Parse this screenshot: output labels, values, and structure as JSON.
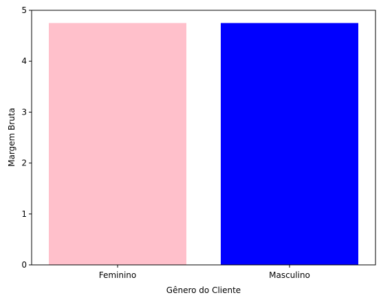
{
  "chart_data": {
    "type": "bar",
    "categories": [
      "Feminino",
      "Masculino"
    ],
    "values": [
      4.75,
      4.75
    ],
    "colors": [
      "#ffc0cb",
      "#0000ff"
    ],
    "xlabel": "Gênero do Cliente",
    "ylabel": "Margem Bruta",
    "ylim": [
      0,
      5
    ],
    "yticks": [
      0,
      1,
      2,
      3,
      4,
      5
    ],
    "grid": false,
    "legend": "none"
  }
}
